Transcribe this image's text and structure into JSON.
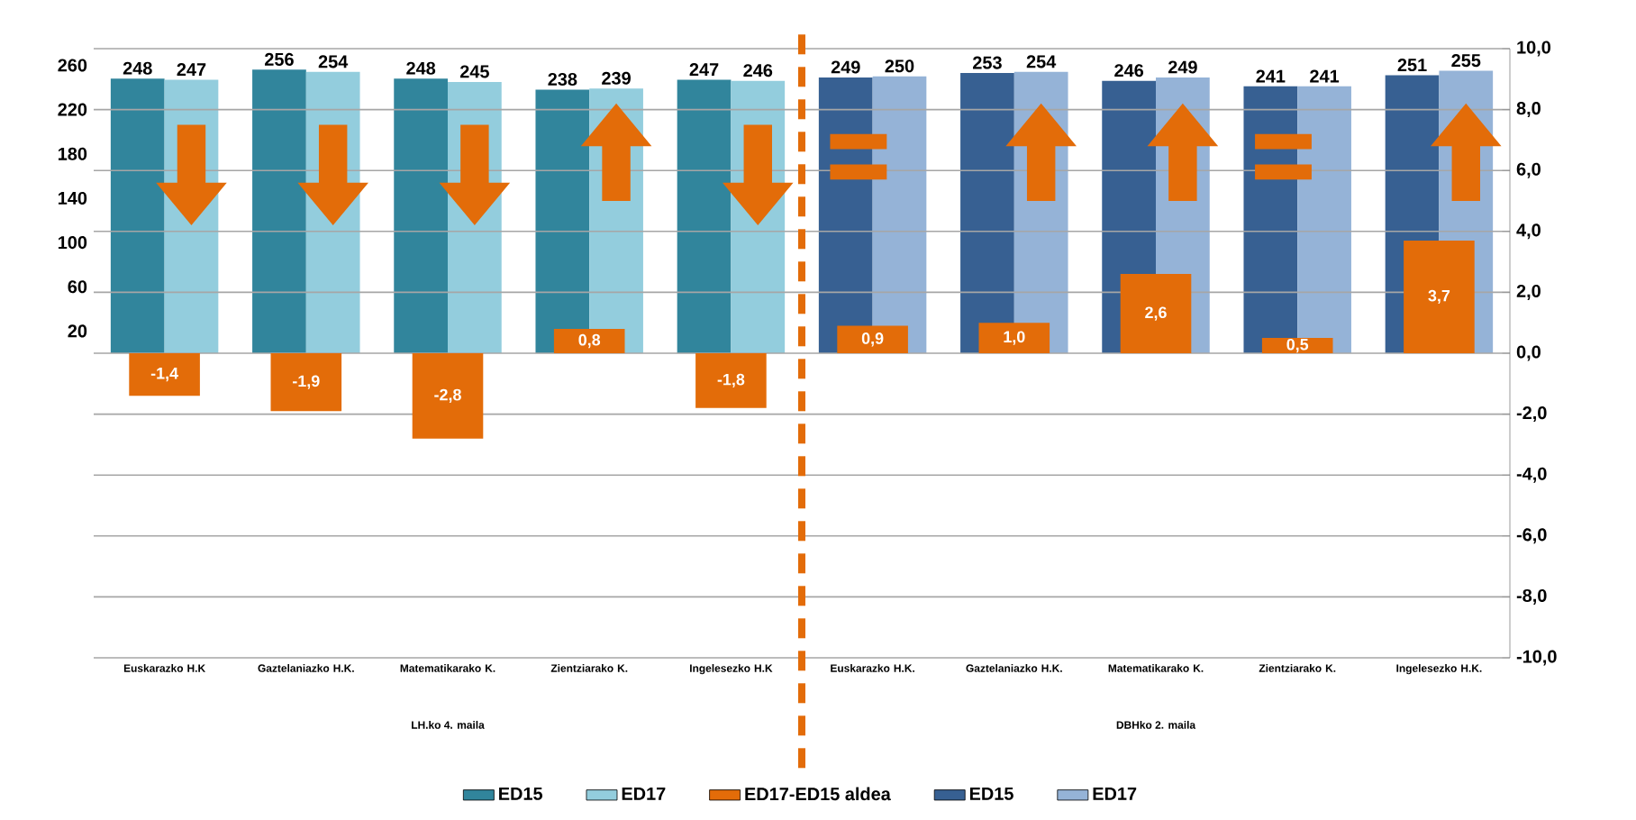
{
  "chart_data": {
    "type": "bar",
    "categories": [
      "Euskarazko H.K",
      "Gaztelaniazko H.K.",
      "Matematikarako K.",
      "Zientziarako K.",
      "Ingelesezko H.K",
      "Euskarazko H.K.",
      "Gaztelaniazko H.K.",
      "Matematikarako K.",
      "Zientziarako K.",
      "Ingelesezko H.K."
    ],
    "series": [
      {
        "name": "ED15",
        "color": "#31859c",
        "values": [
          248,
          256,
          248,
          238,
          247,
          null,
          null,
          null,
          null,
          null
        ],
        "value_labels": [
          "248",
          "256",
          "248",
          "238",
          "247",
          null,
          null,
          null,
          null,
          null
        ]
      },
      {
        "name": "ED17",
        "color": "#93cddd",
        "values": [
          247,
          254,
          245,
          239,
          246,
          null,
          null,
          null,
          null,
          null
        ],
        "value_labels": [
          "247",
          "254",
          "245",
          "239",
          "246",
          null,
          null,
          null,
          null,
          null
        ]
      },
      {
        "name": "ED17-ED15 aldea",
        "color": "#e36c09",
        "axis": "y2",
        "values": [
          -1.4,
          -1.9,
          -2.8,
          0.8,
          -1.8,
          0.9,
          1.0,
          2.6,
          0.5,
          3.7
        ],
        "value_labels": [
          "-1,4",
          "-1,9",
          "-2,8",
          "0,8",
          "-1,8",
          "0,9",
          "1,0",
          "2,6",
          "0,5",
          "3,7"
        ]
      },
      {
        "name": "ED15",
        "color": "#376092",
        "values": [
          null,
          null,
          null,
          null,
          null,
          249,
          253,
          246,
          241,
          251
        ],
        "value_labels": [
          null,
          null,
          null,
          null,
          null,
          "249",
          "253",
          "246",
          "241",
          "251"
        ]
      },
      {
        "name": "ED17",
        "color": "#95b3d7",
        "values": [
          null,
          null,
          null,
          null,
          null,
          250,
          254,
          249,
          241,
          255
        ],
        "value_labels": [
          null,
          null,
          null,
          null,
          null,
          "250",
          "254",
          "249",
          "241",
          "255"
        ]
      }
    ],
    "ylim": [
      -275,
      275
    ],
    "yticks": [
      20,
      60,
      100,
      140,
      180,
      220,
      260
    ],
    "y2lim": [
      -10,
      10
    ],
    "y2ticks": [
      {
        "value": -10,
        "label": "-10,0"
      },
      {
        "value": -8,
        "label": "-8,0"
      },
      {
        "value": -6,
        "label": "-6,0"
      },
      {
        "value": -4,
        "label": "-4,0"
      },
      {
        "value": -2,
        "label": "-2,0"
      },
      {
        "value": 0,
        "label": "0,0"
      },
      {
        "value": 2,
        "label": "2,0"
      },
      {
        "value": 4,
        "label": "4,0"
      },
      {
        "value": 6,
        "label": "6,0"
      },
      {
        "value": 8,
        "label": "8,0"
      },
      {
        "value": 10,
        "label": "10,0"
      }
    ],
    "annotations": [
      "LH.ko 4. maila",
      "DBHko 2. maila"
    ],
    "grid": true,
    "legend": "bottom"
  }
}
